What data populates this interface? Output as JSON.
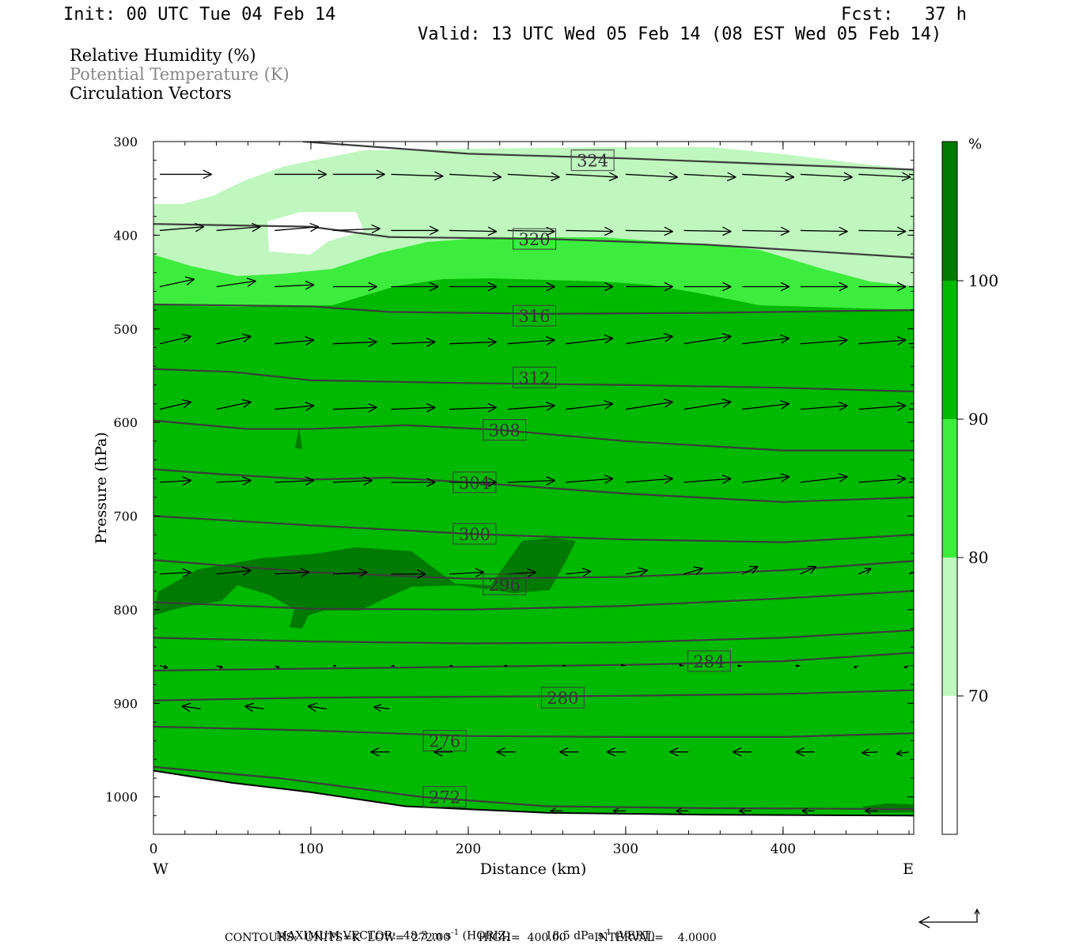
{
  "header": {
    "init": "Init: 00 UTC Tue 04 Feb 14",
    "fcst": "Fcst:   37 h",
    "valid": "Valid: 13 UTC Wed 05 Feb 14 (08 EST Wed 05 Feb 14)"
  },
  "legend": {
    "line1": "Relative Humidity (%)",
    "line2": "Potential Temperature (K)",
    "line3": "Circulation Vectors"
  },
  "colors": {
    "rh_lt70": "#ffffff",
    "rh_70_80": "#bff7bf",
    "rh_80_90": "#3ded3d",
    "rh_90_100": "#00b900",
    "rh_gt100": "#007a00",
    "contour": "#3c3c3c",
    "vector": "#000000"
  },
  "colorbar": {
    "unit": "%",
    "ticks": [
      "100",
      "90",
      "80",
      "70"
    ]
  },
  "axes": {
    "xlabel": "Distance (km)",
    "ylabel": "Pressure (hPa)",
    "west": "W",
    "east": "E",
    "xticks": [
      "0",
      "100",
      "200",
      "300",
      "400"
    ],
    "yticks": [
      "300",
      "400",
      "500",
      "600",
      "700",
      "800",
      "900",
      "1000"
    ]
  },
  "chart_data": {
    "type": "heatmap",
    "xlabel": "Distance (km)",
    "ylabel": "Pressure (hPa)",
    "xlim": [
      0,
      483
    ],
    "ylim": [
      1040,
      300
    ],
    "y_scale": "linear, reversed",
    "rh_levels_percent": [
      70,
      80,
      90,
      100
    ],
    "contour_labels_K": [
      324,
      320,
      316,
      312,
      308,
      304,
      300,
      296,
      284,
      280,
      276,
      272
    ],
    "contour_label_positions": [
      {
        "label": "324",
        "x": 279,
        "p": 320
      },
      {
        "label": "320",
        "x": 242,
        "p": 404
      },
      {
        "label": "316",
        "x": 242,
        "p": 486
      },
      {
        "label": "312",
        "x": 242,
        "p": 552
      },
      {
        "label": "308",
        "x": 223,
        "p": 608
      },
      {
        "label": "304",
        "x": 204,
        "p": 664
      },
      {
        "label": "300",
        "x": 204,
        "p": 719
      },
      {
        "label": "296",
        "x": 223,
        "p": 773
      },
      {
        "label": "284",
        "x": 353,
        "p": 855
      },
      {
        "label": "280",
        "x": 260,
        "p": 894
      },
      {
        "label": "276",
        "x": 185,
        "p": 940
      },
      {
        "label": "272",
        "x": 185,
        "p": 1000
      }
    ],
    "isentropes": [
      {
        "theta": 324,
        "points": [
          [
            95,
            300
          ],
          [
            200,
            313
          ],
          [
            300,
            318
          ],
          [
            483,
            330
          ]
        ]
      },
      {
        "theta": 320,
        "points": [
          [
            0,
            388
          ],
          [
            100,
            391
          ],
          [
            150,
            402
          ],
          [
            250,
            404
          ],
          [
            350,
            410
          ],
          [
            483,
            424
          ]
        ]
      },
      {
        "theta": 316,
        "points": [
          [
            0,
            474
          ],
          [
            100,
            476
          ],
          [
            150,
            482
          ],
          [
            250,
            484
          ],
          [
            350,
            483
          ],
          [
            483,
            480
          ]
        ]
      },
      {
        "theta": 312,
        "points": [
          [
            0,
            543
          ],
          [
            50,
            546
          ],
          [
            100,
            555
          ],
          [
            200,
            558
          ],
          [
            300,
            560
          ],
          [
            400,
            563
          ],
          [
            483,
            567
          ]
        ]
      },
      {
        "theta": 308,
        "points": [
          [
            0,
            598
          ],
          [
            60,
            607
          ],
          [
            100,
            607
          ],
          [
            160,
            603
          ],
          [
            220,
            608
          ],
          [
            300,
            620
          ],
          [
            400,
            630
          ],
          [
            483,
            630
          ]
        ]
      },
      {
        "theta": 304,
        "points": [
          [
            0,
            650
          ],
          [
            40,
            655
          ],
          [
            100,
            661
          ],
          [
            150,
            659
          ],
          [
            200,
            664
          ],
          [
            250,
            670
          ],
          [
            300,
            676
          ],
          [
            400,
            685
          ],
          [
            483,
            680
          ]
        ]
      },
      {
        "theta": 300,
        "points": [
          [
            0,
            700
          ],
          [
            100,
            710
          ],
          [
            200,
            719
          ],
          [
            300,
            725
          ],
          [
            400,
            728
          ],
          [
            483,
            720
          ]
        ]
      },
      {
        "theta": 296,
        "points": [
          [
            0,
            747
          ],
          [
            100,
            760
          ],
          [
            200,
            767
          ],
          [
            300,
            765
          ],
          [
            400,
            758
          ],
          [
            483,
            748
          ]
        ]
      },
      {
        "theta": 292,
        "points": [
          [
            0,
            792
          ],
          [
            100,
            799
          ],
          [
            200,
            800
          ],
          [
            300,
            796
          ],
          [
            400,
            788
          ],
          [
            483,
            780
          ]
        ]
      },
      {
        "theta": 288,
        "points": [
          [
            0,
            830
          ],
          [
            100,
            834
          ],
          [
            200,
            836
          ],
          [
            300,
            835
          ],
          [
            400,
            830
          ],
          [
            483,
            822
          ]
        ]
      },
      {
        "theta": 284,
        "points": [
          [
            0,
            865
          ],
          [
            100,
            863
          ],
          [
            200,
            861
          ],
          [
            300,
            859
          ],
          [
            400,
            855
          ],
          [
            483,
            846
          ]
        ]
      },
      {
        "theta": 280,
        "points": [
          [
            0,
            897
          ],
          [
            100,
            894
          ],
          [
            200,
            893
          ],
          [
            300,
            892
          ],
          [
            400,
            890
          ],
          [
            483,
            886
          ]
        ]
      },
      {
        "theta": 276,
        "points": [
          [
            0,
            925
          ],
          [
            100,
            929
          ],
          [
            200,
            935
          ],
          [
            300,
            936
          ],
          [
            400,
            936
          ],
          [
            483,
            932
          ]
        ]
      },
      {
        "theta": 272,
        "points": [
          [
            0,
            968
          ],
          [
            80,
            980
          ],
          [
            170,
            1000
          ],
          [
            250,
            1010
          ],
          [
            350,
            1012
          ],
          [
            483,
            1013
          ]
        ]
      }
    ],
    "terrain_pressure": [
      [
        0,
        972
      ],
      [
        50,
        985
      ],
      [
        100,
        995
      ],
      [
        160,
        1010
      ],
      [
        250,
        1017
      ],
      [
        350,
        1019
      ],
      [
        483,
        1020
      ]
    ],
    "vector_rows": [
      {
        "p": 335,
        "x": [
          4,
          77,
          114,
          151,
          188,
          225,
          262,
          300,
          337,
          374,
          411,
          448,
          480
        ],
        "dx": [
          33,
          33,
          33,
          33,
          33,
          33,
          33,
          33,
          33,
          33,
          33,
          33,
          30
        ],
        "dp": [
          0,
          0,
          0,
          2,
          3,
          3,
          3,
          3,
          3,
          3,
          3,
          3,
          3
        ]
      },
      {
        "p": 395,
        "x": [
          4,
          40,
          77,
          114,
          151,
          188,
          225,
          262,
          300,
          337,
          374,
          411,
          448,
          480
        ],
        "dx": [
          28,
          28,
          28,
          30,
          30,
          30,
          30,
          30,
          30,
          30,
          30,
          30,
          30,
          28
        ],
        "dp": [
          -4,
          -4,
          -4,
          -2,
          0,
          1,
          1,
          1,
          1,
          1,
          1,
          1,
          1,
          1
        ]
      },
      {
        "p": 455,
        "x": [
          4,
          40,
          77,
          114,
          151,
          188,
          225,
          262,
          300,
          337,
          374,
          411,
          448,
          480
        ],
        "dx": [
          22,
          25,
          25,
          28,
          30,
          30,
          30,
          30,
          30,
          30,
          30,
          30,
          30,
          28
        ],
        "dp": [
          -8,
          -6,
          -2,
          0,
          0,
          0,
          0,
          0,
          0,
          0,
          0,
          0,
          0,
          0
        ]
      },
      {
        "p": 516,
        "x": [
          4,
          40,
          77,
          114,
          151,
          188,
          225,
          262,
          300,
          337,
          374,
          411,
          448,
          480
        ],
        "dx": [
          20,
          22,
          25,
          28,
          28,
          30,
          30,
          30,
          30,
          30,
          30,
          30,
          30,
          28
        ],
        "dp": [
          -8,
          -8,
          -4,
          -2,
          -2,
          -2,
          -4,
          -6,
          -8,
          -8,
          -6,
          -4,
          -4,
          -2
        ]
      },
      {
        "p": 586,
        "x": [
          4,
          40,
          77,
          114,
          151,
          188,
          225,
          262,
          300,
          337,
          374,
          411,
          448,
          480
        ],
        "dx": [
          20,
          22,
          25,
          28,
          28,
          30,
          30,
          30,
          30,
          30,
          30,
          30,
          30,
          28
        ],
        "dp": [
          -8,
          -8,
          -4,
          -2,
          -2,
          -2,
          -4,
          -6,
          -8,
          -8,
          -6,
          -4,
          -4,
          -2
        ]
      },
      {
        "p": 664,
        "x": [
          4,
          40,
          77,
          114,
          151,
          188,
          225,
          262,
          300,
          337,
          374,
          411,
          448,
          480
        ],
        "dx": [
          20,
          22,
          25,
          25,
          28,
          30,
          30,
          30,
          30,
          30,
          30,
          30,
          30,
          28
        ],
        "dp": [
          -2,
          -2,
          -2,
          -2,
          0,
          0,
          -2,
          -4,
          -4,
          -4,
          -6,
          -6,
          -4,
          -4
        ]
      },
      {
        "p": 762,
        "x": [
          4,
          40,
          77,
          114,
          151,
          188,
          225,
          262,
          300,
          337,
          374,
          411,
          448,
          480
        ],
        "dx": [
          20,
          22,
          22,
          22,
          22,
          22,
          18,
          16,
          14,
          12,
          10,
          10,
          8,
          7
        ],
        "dp": [
          -2,
          -4,
          -2,
          -2,
          0,
          -2,
          -2,
          -3,
          -4,
          -6,
          -8,
          -8,
          -6,
          -4
        ]
      },
      {
        "p": 860,
        "x": [
          4,
          40,
          77,
          114,
          151,
          188,
          225,
          262,
          300,
          337,
          374,
          411,
          448,
          480
        ],
        "dx": [
          5,
          4,
          3,
          2,
          2,
          2,
          -2,
          -2,
          -3,
          -3,
          -3,
          -3,
          -3,
          -3
        ],
        "dp": [
          2,
          2,
          2,
          0,
          0,
          0,
          0,
          0,
          -1,
          -1,
          0,
          0,
          2,
          2
        ]
      },
      {
        "p": 906,
        "x": [
          30,
          70,
          110,
          150
        ],
        "dx": [
          -12,
          -12,
          -12,
          -10
        ],
        "dp": [
          -3,
          -3,
          -3,
          -2
        ]
      },
      {
        "p": 952,
        "x": [
          150,
          190,
          230,
          270,
          300,
          340,
          380,
          420,
          460,
          480
        ],
        "dx": [
          -12,
          -12,
          -12,
          -12,
          -12,
          -12,
          -12,
          -12,
          -10,
          -8
        ],
        "dp": [
          0,
          0,
          0,
          0,
          0,
          0,
          0,
          0,
          1,
          2
        ]
      },
      {
        "p": 1015,
        "x": [
          260,
          300,
          340,
          380,
          420,
          460
        ],
        "dx": [
          -8,
          -8,
          -8,
          -8,
          -8,
          -8
        ],
        "dp": [
          0,
          0,
          0,
          0,
          0,
          0
        ]
      }
    ]
  },
  "footer": {
    "max_vector_label": "MAXIMUM VECTOR:",
    "horiz": "48.3 m s",
    "horiz_unit": "-1",
    "horiz_tail": " (HORIZ)",
    "vert": "18.5 dPa s",
    "vert_unit": "-1",
    "vert_tail": " (VERT)",
    "contours": "CONTOURS:  UNITS=K  LOW=  272.00        HIGH=  400.00        INTERVAL=    4.0000"
  }
}
